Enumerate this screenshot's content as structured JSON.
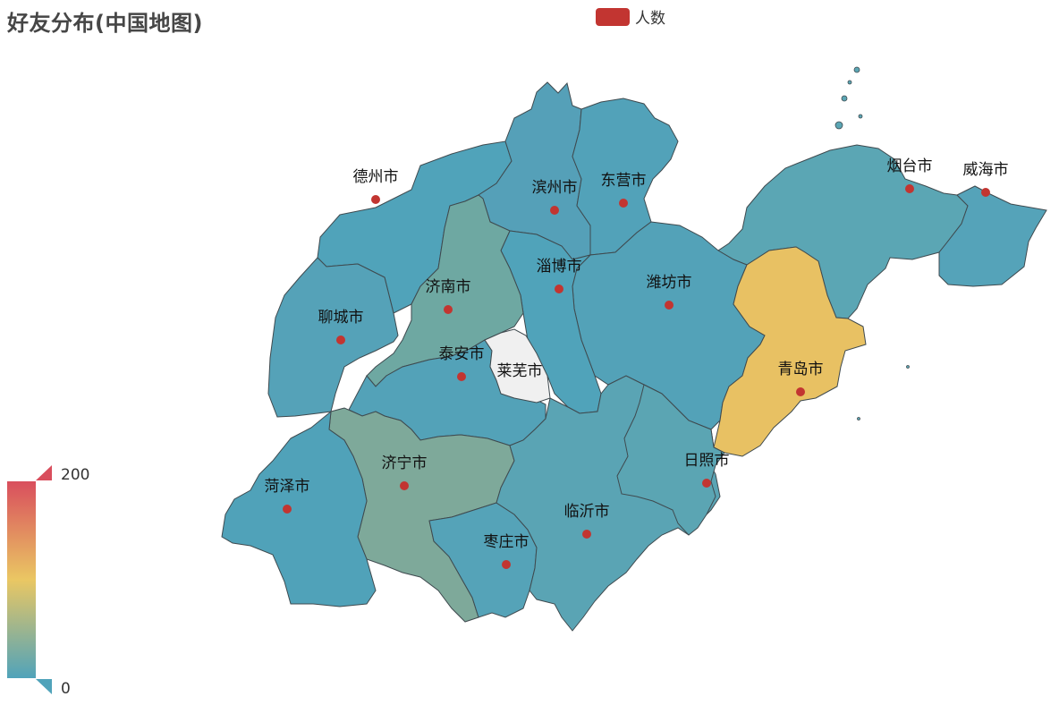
{
  "title": "好友分布(中国地图)",
  "legend": {
    "label": "人数",
    "color": "#c23531"
  },
  "visual_map": {
    "min": 0,
    "max": 200,
    "min_label": "0",
    "max_label": "200",
    "colors": [
      "#50a3ba",
      "#eac763",
      "#d94e5d"
    ]
  },
  "regions": [
    {
      "name": "德州市",
      "fill": "#50a3ba"
    },
    {
      "name": "滨州市",
      "fill": "#55a0b8"
    },
    {
      "name": "东营市",
      "fill": "#52a2b9"
    },
    {
      "name": "烟台市",
      "fill": "#5ba6b4"
    },
    {
      "name": "威海市",
      "fill": "#55a3b9"
    },
    {
      "name": "潍坊市",
      "fill": "#53a2b8"
    },
    {
      "name": "青岛市",
      "fill": "#e8c163"
    },
    {
      "name": "淄博市",
      "fill": "#50a3ba"
    },
    {
      "name": "济南市",
      "fill": "#6ea8a2"
    },
    {
      "name": "聊城市",
      "fill": "#55a2b8"
    },
    {
      "name": "泰安市",
      "fill": "#53a2b8"
    },
    {
      "name": "莱芜市",
      "fill": "#f0f0f0"
    },
    {
      "name": "济宁市",
      "fill": "#7ea99a"
    },
    {
      "name": "菏泽市",
      "fill": "#50a2b9"
    },
    {
      "name": "枣庄市",
      "fill": "#55a3b8"
    },
    {
      "name": "临沂市",
      "fill": "#5aa4b4"
    },
    {
      "name": "日照市",
      "fill": "#5ba5b3"
    }
  ]
}
